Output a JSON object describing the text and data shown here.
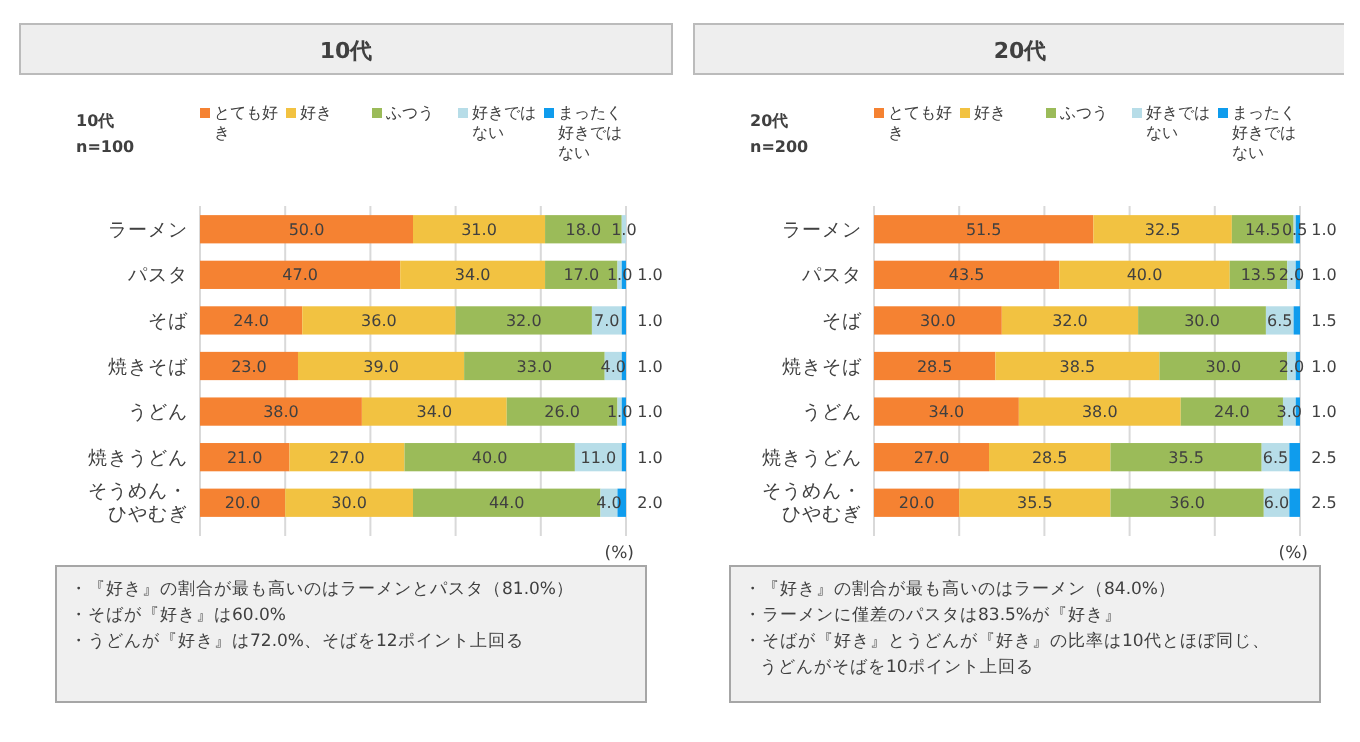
{
  "chart_data": [
    {
      "type": "bar",
      "orientation": "horizontal",
      "stacked": true,
      "title": "10代",
      "subtitle": "10代\nn=100",
      "xlabel": "(%)",
      "categories": [
        "ラーメン",
        "パスタ",
        "そば",
        "焼きそば",
        "うどん",
        "焼きうどん",
        "そうめん・ひやむぎ"
      ],
      "tick_labels": "y",
      "grid": "x",
      "legend": "top",
      "series": [
        {
          "name": "とても好き",
          "color": "#f58232",
          "values": [
            50.0,
            47.0,
            24.0,
            23.0,
            38.0,
            21.0,
            20.0
          ],
          "value_labels": [
            "50.0",
            "47.0",
            "24.0",
            "23.0",
            "38.0",
            "21.0",
            "20.0"
          ]
        },
        {
          "name": "好き",
          "color": "#f2c241",
          "values": [
            31.0,
            34.0,
            36.0,
            39.0,
            34.0,
            27.0,
            30.0
          ],
          "value_labels": [
            "31.0",
            "34.0",
            "36.0",
            "39.0",
            "34.0",
            "27.0",
            "30.0"
          ]
        },
        {
          "name": "ふつう",
          "color": "#9bbb59",
          "values": [
            18.0,
            17.0,
            32.0,
            33.0,
            26.0,
            40.0,
            44.0
          ],
          "value_labels": [
            "18.0",
            "17.0",
            "32.0",
            "33.0",
            "26.0",
            "40.0",
            "44.0"
          ]
        },
        {
          "name": "好きではない",
          "color": "#b7dde8",
          "values": [
            1.0,
            1.0,
            7.0,
            4.0,
            1.0,
            11.0,
            4.0
          ],
          "value_labels": [
            "1.0",
            "1.0",
            "7.0",
            "4.0",
            "1.0",
            "11.0",
            "4.0"
          ]
        },
        {
          "name": "まったく好きではない",
          "color": "#0f9ced",
          "values": [
            null,
            1.0,
            1.0,
            1.0,
            1.0,
            1.0,
            2.0
          ],
          "value_labels": [
            null,
            "1.0",
            "1.0",
            "1.0",
            "1.0",
            "1.0",
            "2.0"
          ]
        }
      ],
      "annotations": [
        "・『好き』の割合が最も高いのはラーメンとパスタ（81.0%）",
        "・そばが『好き』は60.0%",
        "・うどんが『好き』は72.0%、そばを12ポイント上回る"
      ]
    },
    {
      "type": "bar",
      "orientation": "horizontal",
      "stacked": true,
      "title": "20代",
      "subtitle": "20代\nn=200",
      "xlabel": "(%)",
      "categories": [
        "ラーメン",
        "パスタ",
        "そば",
        "焼きそば",
        "うどん",
        "焼きうどん",
        "そうめん・ひやむぎ"
      ],
      "tick_labels": "y",
      "grid": "x",
      "legend": "top",
      "series": [
        {
          "name": "とても好き",
          "color": "#f58232",
          "values": [
            51.5,
            43.5,
            30.0,
            28.5,
            34.0,
            27.0,
            20.0
          ],
          "value_labels": [
            "51.5",
            "43.5",
            "30.0",
            "28.5",
            "34.0",
            "27.0",
            "20.0"
          ]
        },
        {
          "name": "好き",
          "color": "#f2c241",
          "values": [
            32.5,
            40.0,
            32.0,
            38.5,
            38.0,
            28.5,
            35.5
          ],
          "value_labels": [
            "32.5",
            "40.0",
            "32.0",
            "38.5",
            "38.0",
            "28.5",
            "35.5"
          ]
        },
        {
          "name": "ふつう",
          "color": "#9bbb59",
          "values": [
            14.5,
            13.5,
            30.0,
            30.0,
            24.0,
            35.5,
            36.0
          ],
          "value_labels": [
            "14.5",
            "13.5",
            "30.0",
            "30.0",
            "24.0",
            "35.5",
            "36.0"
          ]
        },
        {
          "name": "好きではない",
          "color": "#b7dde8",
          "values": [
            0.5,
            2.0,
            6.5,
            2.0,
            3.0,
            6.5,
            6.0
          ],
          "value_labels": [
            "0.5",
            "2.0",
            "6.5",
            "2.0",
            "3.0",
            "6.5",
            "6.0"
          ]
        },
        {
          "name": "まったく好きではない",
          "color": "#0f9ced",
          "values": [
            1.0,
            1.0,
            1.5,
            1.0,
            1.0,
            2.5,
            2.5
          ],
          "value_labels": [
            "1.0",
            "1.0",
            "1.5",
            "1.0",
            "1.0",
            "2.5",
            "2.5"
          ]
        }
      ],
      "annotations": [
        "・『好き』の割合が最も高いのはラーメン（84.0%）",
        "・ラーメンに僅差のパスタは83.5%が『好き』",
        "・そばが『好き』とうどんが『好き』の比率は10代とほぼ同じ、うどんがそばを10ポイント上回る"
      ]
    }
  ]
}
